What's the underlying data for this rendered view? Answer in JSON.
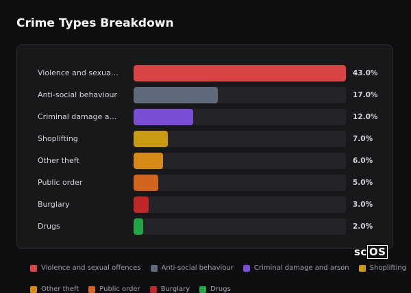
{
  "chart_data": {
    "type": "bar",
    "orientation": "horizontal",
    "title": "Crime Types Breakdown",
    "categories": [
      "Violence and sexual offences",
      "Anti-social behaviour",
      "Criminal damage and arson",
      "Shoplifting",
      "Other theft",
      "Public order",
      "Burglary",
      "Drugs"
    ],
    "values": [
      43,
      17,
      12,
      7,
      6,
      5,
      3,
      2
    ],
    "value_labels": [
      "43.0%",
      "17.0%",
      "12.0%",
      "7.0%",
      "6.0%",
      "5.0%",
      "3.0%",
      "2.0%"
    ],
    "colors": [
      "#d94545",
      "#5f6b7a",
      "#7a4fd6",
      "#c99a12",
      "#d48a14",
      "#d2651e",
      "#c02828",
      "#22a447"
    ],
    "xlim": [
      0,
      43
    ]
  },
  "watermark": "scOS"
}
